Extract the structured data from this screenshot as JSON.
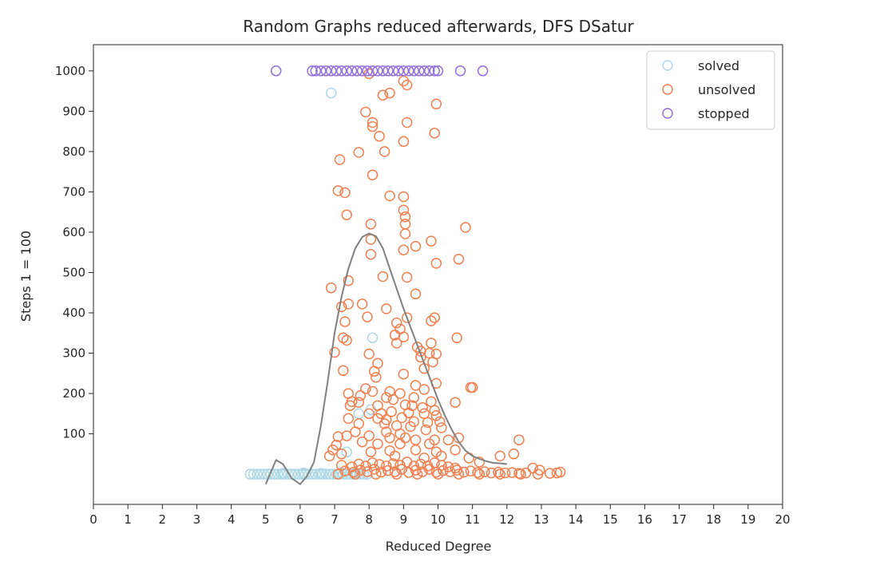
{
  "chart_data": {
    "type": "scatter",
    "title": "Random Graphs reduced afterwards, DFS DSatur",
    "xlabel": "Reduced Degree",
    "ylabel": "Steps 1 = 100",
    "xlim": [
      0,
      20
    ],
    "ylim": [
      -75,
      1065
    ],
    "xticks": [
      0,
      1,
      2,
      3,
      4,
      5,
      6,
      7,
      8,
      9,
      10,
      11,
      12,
      13,
      14,
      15,
      16,
      17,
      18,
      19,
      20
    ],
    "yticks": [
      100,
      200,
      300,
      400,
      500,
      600,
      700,
      800,
      900,
      1000
    ],
    "grid": false,
    "legend_position": "top-right",
    "series": [
      {
        "name": "solved",
        "color": "#add8e6",
        "marker": "open-circle",
        "points": [
          [
            4.55,
            0
          ],
          [
            4.65,
            0
          ],
          [
            4.75,
            0
          ],
          [
            4.85,
            0
          ],
          [
            4.95,
            0
          ],
          [
            5.05,
            0
          ],
          [
            5.15,
            0
          ],
          [
            5.25,
            0
          ],
          [
            5.35,
            0
          ],
          [
            5.45,
            0
          ],
          [
            5.55,
            0
          ],
          [
            5.65,
            0
          ],
          [
            5.75,
            0
          ],
          [
            5.85,
            0
          ],
          [
            5.95,
            0
          ],
          [
            6.05,
            0
          ],
          [
            6.15,
            0
          ],
          [
            6.25,
            0
          ],
          [
            6.35,
            0
          ],
          [
            6.45,
            0
          ],
          [
            6.55,
            0
          ],
          [
            6.65,
            0
          ],
          [
            6.75,
            0
          ],
          [
            6.85,
            0
          ],
          [
            6.95,
            0
          ],
          [
            7.05,
            0
          ],
          [
            7.15,
            0
          ],
          [
            7.25,
            0
          ],
          [
            7.35,
            0
          ],
          [
            7.45,
            0
          ],
          [
            7.55,
            0
          ],
          [
            7.65,
            0
          ],
          [
            7.75,
            0
          ],
          [
            7.85,
            0
          ],
          [
            7.95,
            0
          ],
          [
            5.5,
            2
          ],
          [
            6.1,
            3
          ],
          [
            6.6,
            2
          ],
          [
            7.2,
            3
          ],
          [
            7.6,
            2
          ],
          [
            6.9,
            945
          ],
          [
            8.1,
            338
          ],
          [
            7.35,
            55
          ],
          [
            7.7,
            150
          ],
          [
            8.05,
            160
          ]
        ]
      },
      {
        "name": "unsolved",
        "color": "#f08050",
        "marker": "open-circle",
        "points": [
          [
            8.0,
            993
          ],
          [
            9.0,
            975
          ],
          [
            9.1,
            965
          ],
          [
            8.4,
            940
          ],
          [
            8.6,
            945
          ],
          [
            9.95,
            918
          ],
          [
            7.9,
            898
          ],
          [
            8.1,
            872
          ],
          [
            8.1,
            862
          ],
          [
            9.1,
            872
          ],
          [
            9.9,
            846
          ],
          [
            8.3,
            838
          ],
          [
            9.0,
            825
          ],
          [
            7.7,
            798
          ],
          [
            8.45,
            800
          ],
          [
            7.15,
            780
          ],
          [
            8.1,
            742
          ],
          [
            7.1,
            703
          ],
          [
            7.3,
            698
          ],
          [
            8.6,
            690
          ],
          [
            9.0,
            688
          ],
          [
            9.0,
            655
          ],
          [
            7.35,
            643
          ],
          [
            9.05,
            638
          ],
          [
            9.05,
            620
          ],
          [
            8.05,
            620
          ],
          [
            10.8,
            612
          ],
          [
            9.05,
            596
          ],
          [
            8.05,
            582
          ],
          [
            9.8,
            578
          ],
          [
            9.35,
            565
          ],
          [
            9.0,
            556
          ],
          [
            8.05,
            545
          ],
          [
            10.6,
            533
          ],
          [
            9.95,
            523
          ],
          [
            8.4,
            490
          ],
          [
            9.1,
            488
          ],
          [
            7.4,
            480
          ],
          [
            6.9,
            462
          ],
          [
            9.35,
            447
          ],
          [
            7.4,
            422
          ],
          [
            7.8,
            422
          ],
          [
            7.2,
            415
          ],
          [
            8.5,
            410
          ],
          [
            7.95,
            390
          ],
          [
            9.9,
            388
          ],
          [
            9.8,
            380
          ],
          [
            7.3,
            378
          ],
          [
            9.1,
            388
          ],
          [
            8.8,
            375
          ],
          [
            8.9,
            360
          ],
          [
            8.75,
            345
          ],
          [
            9.0,
            340
          ],
          [
            7.25,
            338
          ],
          [
            7.35,
            332
          ],
          [
            8.8,
            325
          ],
          [
            9.8,
            325
          ],
          [
            10.55,
            338
          ],
          [
            9.5,
            305
          ],
          [
            9.5,
            290
          ],
          [
            9.75,
            300
          ],
          [
            9.95,
            298
          ],
          [
            7.0,
            302
          ],
          [
            8.0,
            298
          ],
          [
            9.4,
            315
          ],
          [
            9.85,
            278
          ],
          [
            8.25,
            275
          ],
          [
            9.6,
            262
          ],
          [
            8.15,
            255
          ],
          [
            7.25,
            257
          ],
          [
            9.0,
            248
          ],
          [
            8.2,
            240
          ],
          [
            9.35,
            220
          ],
          [
            9.95,
            225
          ],
          [
            10.95,
            215
          ],
          [
            11.0,
            215
          ],
          [
            9.6,
            210
          ],
          [
            7.9,
            212
          ],
          [
            8.6,
            205
          ],
          [
            8.9,
            200
          ],
          [
            7.4,
            200
          ],
          [
            7.75,
            195
          ],
          [
            8.1,
            205
          ],
          [
            9.8,
            180
          ],
          [
            10.5,
            178
          ],
          [
            9.3,
            190
          ],
          [
            8.5,
            190
          ],
          [
            8.7,
            185
          ],
          [
            7.5,
            180
          ],
          [
            7.7,
            178
          ],
          [
            8.25,
            170
          ],
          [
            9.05,
            172
          ],
          [
            9.25,
            170
          ],
          [
            9.55,
            165
          ],
          [
            9.9,
            158
          ],
          [
            7.45,
            170
          ],
          [
            8.0,
            150
          ],
          [
            8.35,
            150
          ],
          [
            8.65,
            155
          ],
          [
            9.15,
            152
          ],
          [
            9.6,
            150
          ],
          [
            9.95,
            145
          ],
          [
            7.4,
            138
          ],
          [
            8.25,
            138
          ],
          [
            8.5,
            135
          ],
          [
            8.95,
            140
          ],
          [
            9.3,
            130
          ],
          [
            9.7,
            128
          ],
          [
            10.05,
            130
          ],
          [
            7.7,
            125
          ],
          [
            8.45,
            125
          ],
          [
            8.8,
            120
          ],
          [
            9.2,
            118
          ],
          [
            9.65,
            110
          ],
          [
            10.1,
            115
          ],
          [
            7.6,
            105
          ],
          [
            8.5,
            105
          ],
          [
            8.9,
            100
          ],
          [
            7.1,
            93
          ],
          [
            7.35,
            95
          ],
          [
            8.0,
            95
          ],
          [
            8.6,
            90
          ],
          [
            9.05,
            90
          ],
          [
            9.35,
            85
          ],
          [
            9.9,
            85
          ],
          [
            10.3,
            85
          ],
          [
            10.6,
            90
          ],
          [
            12.35,
            85
          ],
          [
            7.05,
            72
          ],
          [
            7.8,
            80
          ],
          [
            8.25,
            75
          ],
          [
            8.9,
            75
          ],
          [
            9.75,
            75
          ],
          [
            10.5,
            60
          ],
          [
            6.95,
            60
          ],
          [
            8.05,
            55
          ],
          [
            8.6,
            58
          ],
          [
            9.35,
            60
          ],
          [
            9.95,
            55
          ],
          [
            6.85,
            45
          ],
          [
            7.2,
            50
          ],
          [
            8.75,
            45
          ],
          [
            10.1,
            45
          ],
          [
            11.8,
            45
          ],
          [
            12.2,
            50
          ],
          [
            9.6,
            40
          ],
          [
            10.9,
            40
          ],
          [
            11.2,
            30
          ],
          [
            7.2,
            22
          ],
          [
            7.5,
            18
          ],
          [
            7.7,
            25
          ],
          [
            7.9,
            20
          ],
          [
            8.1,
            28
          ],
          [
            8.3,
            24
          ],
          [
            8.5,
            20
          ],
          [
            8.7,
            26
          ],
          [
            8.9,
            22
          ],
          [
            9.1,
            30
          ],
          [
            9.3,
            20
          ],
          [
            9.5,
            25
          ],
          [
            9.7,
            20
          ],
          [
            9.9,
            28
          ],
          [
            10.1,
            22
          ],
          [
            10.3,
            18
          ],
          [
            10.5,
            15
          ],
          [
            7.3,
            8
          ],
          [
            7.55,
            5
          ],
          [
            7.75,
            10
          ],
          [
            7.95,
            6
          ],
          [
            8.15,
            12
          ],
          [
            8.35,
            5
          ],
          [
            8.55,
            9
          ],
          [
            8.75,
            6
          ],
          [
            8.95,
            12
          ],
          [
            9.15,
            4
          ],
          [
            9.35,
            10
          ],
          [
            9.55,
            6
          ],
          [
            9.75,
            12
          ],
          [
            9.95,
            5
          ],
          [
            10.15,
            9
          ],
          [
            10.35,
            6
          ],
          [
            10.55,
            10
          ],
          [
            10.75,
            5
          ],
          [
            10.95,
            8
          ],
          [
            11.15,
            4
          ],
          [
            11.35,
            6
          ],
          [
            11.55,
            3
          ],
          [
            11.75,
            5
          ],
          [
            11.95,
            3
          ],
          [
            12.15,
            4
          ],
          [
            12.35,
            2
          ],
          [
            12.55,
            3
          ],
          [
            12.75,
            15
          ],
          [
            12.95,
            10
          ],
          [
            13.25,
            2
          ],
          [
            13.45,
            3
          ],
          [
            13.55,
            5
          ],
          [
            7.1,
            0
          ],
          [
            7.6,
            0
          ],
          [
            8.2,
            0
          ],
          [
            8.8,
            0
          ],
          [
            9.4,
            0
          ],
          [
            10.0,
            0
          ],
          [
            10.6,
            0
          ],
          [
            11.2,
            0
          ],
          [
            11.8,
            0
          ],
          [
            12.4,
            0
          ],
          [
            12.9,
            0
          ]
        ]
      },
      {
        "name": "stopped",
        "color": "#9370db",
        "marker": "open-circle",
        "points": [
          [
            5.3,
            1000
          ],
          [
            6.35,
            1000
          ],
          [
            6.45,
            1000
          ],
          [
            6.6,
            1000
          ],
          [
            6.75,
            1000
          ],
          [
            6.9,
            1000
          ],
          [
            7.05,
            1000
          ],
          [
            7.2,
            1000
          ],
          [
            7.35,
            1000
          ],
          [
            7.5,
            1000
          ],
          [
            7.65,
            1000
          ],
          [
            7.8,
            1000
          ],
          [
            7.95,
            1000
          ],
          [
            8.1,
            1000
          ],
          [
            8.25,
            1000
          ],
          [
            8.4,
            1000
          ],
          [
            8.55,
            1000
          ],
          [
            8.7,
            1000
          ],
          [
            8.85,
            1000
          ],
          [
            9.0,
            1000
          ],
          [
            9.15,
            1000
          ],
          [
            9.3,
            1000
          ],
          [
            9.45,
            1000
          ],
          [
            9.6,
            1000
          ],
          [
            9.75,
            1000
          ],
          [
            9.9,
            1000
          ],
          [
            10.0,
            1000
          ],
          [
            10.65,
            1000
          ],
          [
            11.3,
            1000
          ]
        ]
      },
      {
        "name": "",
        "type": "line",
        "color": "#808080",
        "points": [
          [
            5.0,
            -25
          ],
          [
            5.3,
            35
          ],
          [
            5.5,
            25
          ],
          [
            5.75,
            -10
          ],
          [
            6.0,
            -25
          ],
          [
            6.2,
            -5
          ],
          [
            6.4,
            30
          ],
          [
            6.6,
            120
          ],
          [
            6.8,
            230
          ],
          [
            7.0,
            350
          ],
          [
            7.2,
            440
          ],
          [
            7.4,
            510
          ],
          [
            7.6,
            560
          ],
          [
            7.8,
            588
          ],
          [
            8.0,
            597
          ],
          [
            8.2,
            590
          ],
          [
            8.4,
            560
          ],
          [
            8.6,
            510
          ],
          [
            8.8,
            460
          ],
          [
            9.0,
            410
          ],
          [
            9.2,
            365
          ],
          [
            9.4,
            320
          ],
          [
            9.6,
            275
          ],
          [
            9.8,
            230
          ],
          [
            10.0,
            185
          ],
          [
            10.2,
            145
          ],
          [
            10.4,
            110
          ],
          [
            10.6,
            80
          ],
          [
            10.8,
            58
          ],
          [
            11.0,
            45
          ],
          [
            11.2,
            38
          ],
          [
            11.4,
            32
          ],
          [
            11.6,
            28
          ],
          [
            11.8,
            27
          ],
          [
            12.0,
            25
          ]
        ]
      }
    ]
  }
}
